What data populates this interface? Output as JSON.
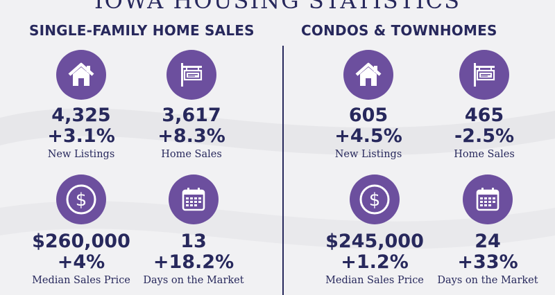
{
  "title": "IOWA HOUSING STATISTICS",
  "colors": {
    "navy": "#27285c",
    "purple": "#6c4f9e",
    "background": "#f1f1f3"
  },
  "single_family": {
    "heading": "SINGLE-FAMILY HOME SALES",
    "new_listings": {
      "icon": "house-icon",
      "value": "4,325",
      "change": "+3.1%",
      "label": "New Listings"
    },
    "home_sales": {
      "icon": "sold-sign-icon",
      "value": "3,617",
      "change": "+8.3%",
      "label": "Home Sales"
    },
    "median_price": {
      "icon": "dollar-icon",
      "value": "$260,000",
      "change": "+4%",
      "label": "Median Sales Price"
    },
    "days_on_market": {
      "icon": "calendar-icon",
      "value": "13",
      "change": "+18.2%",
      "label": "Days on the Market"
    }
  },
  "condos": {
    "heading": "CONDOS & TOWNHOMES",
    "new_listings": {
      "icon": "house-icon",
      "value": "605",
      "change": "+4.5%",
      "label": "New Listings"
    },
    "home_sales": {
      "icon": "sold-sign-icon",
      "value": "465",
      "change": "-2.5%",
      "label": "Home Sales"
    },
    "median_price": {
      "icon": "dollar-icon",
      "value": "$245,000",
      "change": "+1.2%",
      "label": "Median Sales Price"
    },
    "days_on_market": {
      "icon": "calendar-icon",
      "value": "24",
      "change": "+33%",
      "label": "Days on the Market"
    }
  }
}
